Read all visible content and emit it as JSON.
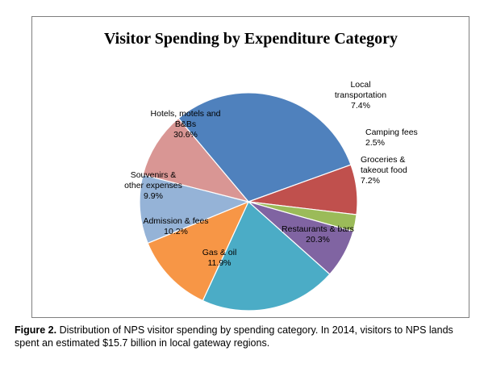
{
  "chart_data": {
    "type": "pie",
    "title": "Visitor Spending by Expenditure Category",
    "slices": [
      {
        "name": "Hotels, motels and B&Bs",
        "label_lines": [
          "Hotels, motels and",
          "B&Bs"
        ],
        "value": 30.6,
        "value_label": "30.6%",
        "color": "#4f81bd",
        "label_color": "#000000"
      },
      {
        "name": "Local transportation",
        "label_lines": [
          "Local",
          "transportation"
        ],
        "value": 7.4,
        "value_label": "7.4%",
        "color": "#c0504d",
        "label_color": "#000000"
      },
      {
        "name": "Camping fees",
        "label_lines": [
          "Camping fees"
        ],
        "value": 2.5,
        "value_label": "2.5%",
        "color": "#9bbb59",
        "label_color": "#000000"
      },
      {
        "name": "Groceries & takeout food",
        "label_lines": [
          "Groceries &",
          "takeout food"
        ],
        "value": 7.2,
        "value_label": "7.2%",
        "color": "#8064a2",
        "label_color": "#000000"
      },
      {
        "name": "Restaurants & bars",
        "label_lines": [
          "Restaurants & bars"
        ],
        "value": 20.3,
        "value_label": "20.3%",
        "color": "#4bacc6",
        "label_color": "#000000"
      },
      {
        "name": "Gas & oil",
        "label_lines": [
          "Gas & oil"
        ],
        "value": 11.9,
        "value_label": "11.9%",
        "color": "#f79646",
        "label_color": "#000000"
      },
      {
        "name": "Admission & fees",
        "label_lines": [
          "Admission & fees"
        ],
        "value": 10.2,
        "value_label": "10.2%",
        "color": "#95b3d7",
        "label_color": "#000000"
      },
      {
        "name": "Souvenirs & other expenses",
        "label_lines": [
          "Souvenirs &",
          "other expenses"
        ],
        "value": 9.9,
        "value_label": "9.9%",
        "color": "#d99694",
        "label_color": "#000000"
      }
    ]
  },
  "caption": {
    "figure_label": "Figure 2.",
    "text": " Distribution of NPS visitor spending by spending category. In 2014, visitors to NPS lands spent an estimated $15.7 billion in local gateway regions."
  }
}
